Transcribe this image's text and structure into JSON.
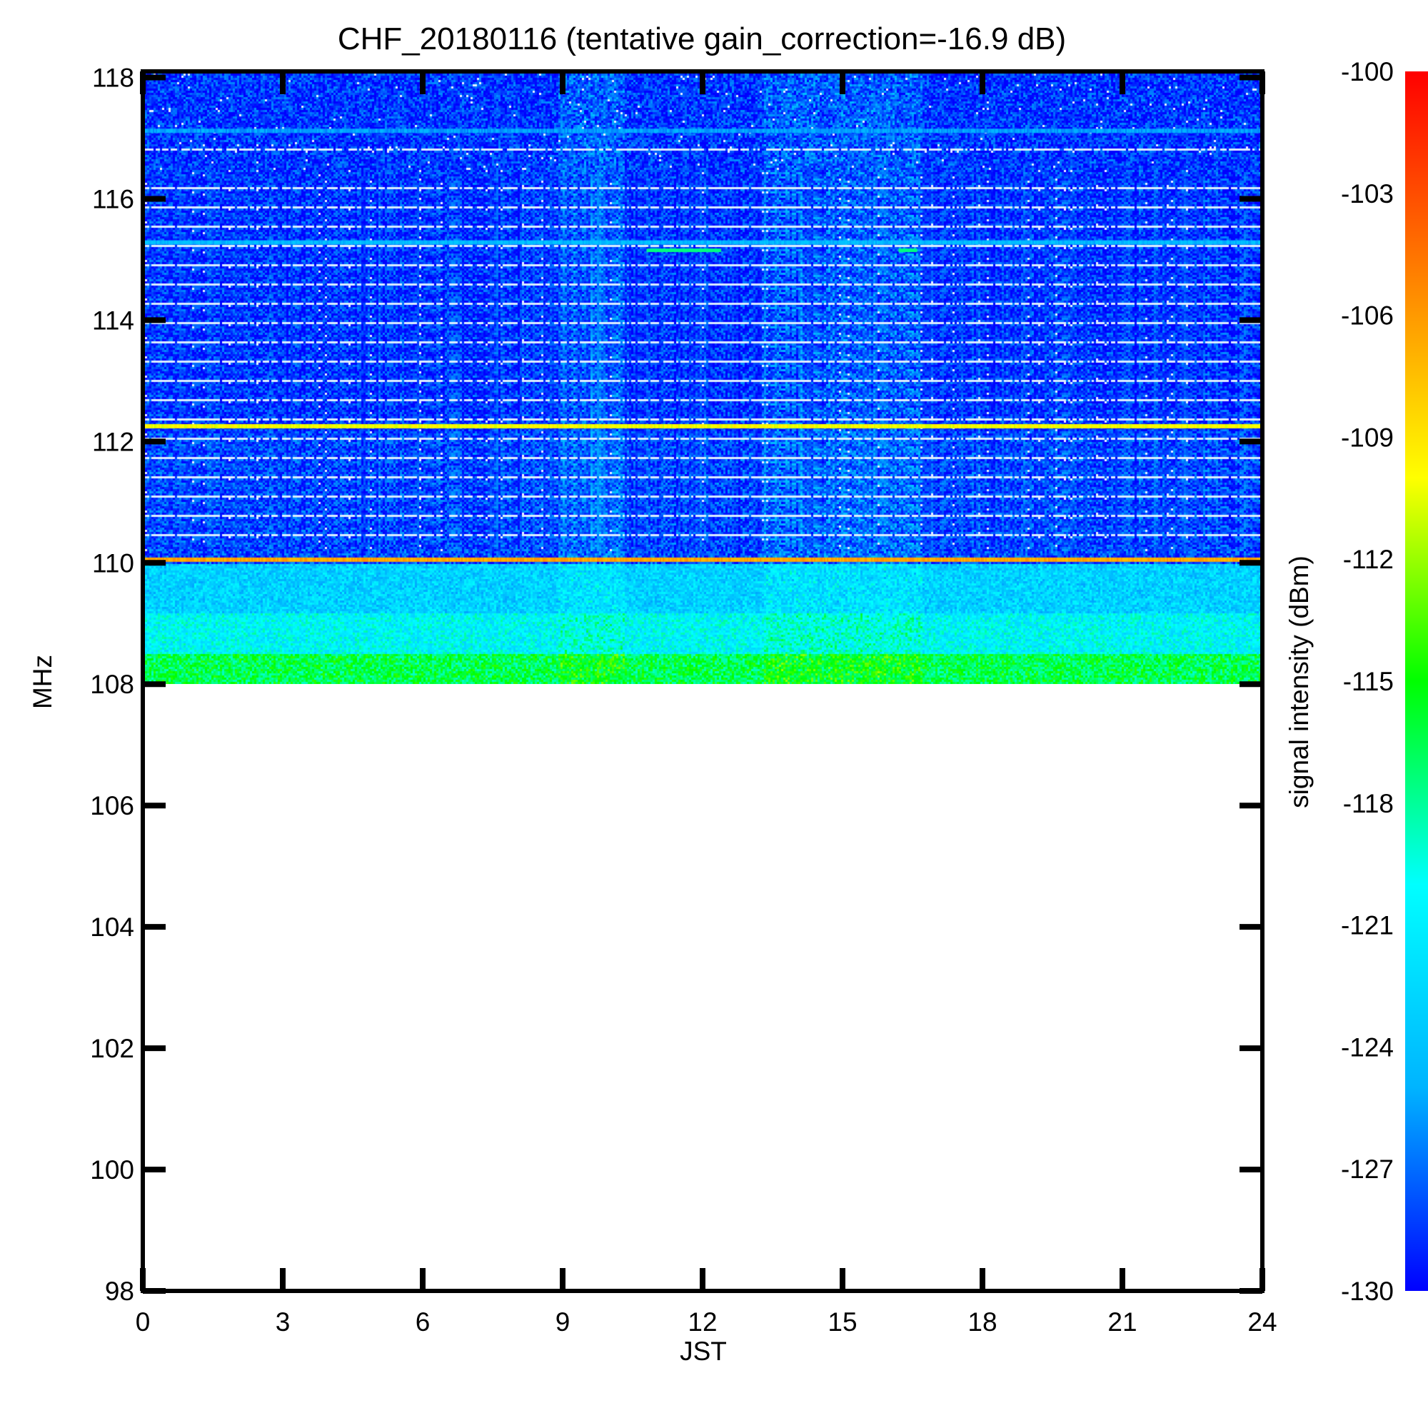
{
  "chart_data": {
    "type": "heatmap",
    "title": "CHF_20180116 (tentative gain_correction=-16.9 dB)",
    "xlabel": "JST",
    "ylabel": "MHz",
    "colorbar_label": "signal intensity (dBm)",
    "xlim": [
      0,
      24
    ],
    "ylim": [
      98,
      118.1
    ],
    "x_ticks": [
      0,
      3,
      6,
      9,
      12,
      15,
      18,
      21,
      24
    ],
    "y_ticks": [
      98,
      100,
      102,
      104,
      106,
      108,
      110,
      112,
      114,
      116,
      118
    ],
    "colorbar_ticks": [
      -100,
      -103,
      -106,
      -109,
      -112,
      -115,
      -118,
      -121,
      -124,
      -127,
      -130
    ],
    "colorbar_range": [
      -130,
      -100
    ],
    "colormap": [
      "#0000ff",
      "#00b4ff",
      "#00ffff",
      "#00ff00",
      "#ffff00",
      "#ff8000",
      "#ff0000"
    ],
    "data_coverage_mhz": [
      108,
      118.1
    ],
    "background_levels_dBm": [
      {
        "from_mhz": 108.0,
        "to_mhz": 108.5,
        "level": -116.5
      },
      {
        "from_mhz": 108.5,
        "to_mhz": 109.2,
        "level": -120.5
      },
      {
        "from_mhz": 109.2,
        "to_mhz": 110.0,
        "level": -123.0
      },
      {
        "from_mhz": 110.0,
        "to_mhz": 112.2,
        "level": -128.0
      },
      {
        "from_mhz": 112.2,
        "to_mhz": 118.1,
        "level": -128.5
      }
    ],
    "persistent_lines_dBm": [
      {
        "freq_mhz": 110.05,
        "level": -106.5
      },
      {
        "freq_mhz": 112.25,
        "level": -110.0
      },
      {
        "freq_mhz": 115.28,
        "level": -124.5
      },
      {
        "freq_mhz": 117.12,
        "level": -125.5
      }
    ],
    "transient_features_dBm": [
      {
        "freq_mhz": 115.15,
        "start_hour": 10.8,
        "end_hour": 12.4,
        "level": -117.5
      },
      {
        "freq_mhz": 115.15,
        "start_hour": 16.2,
        "end_hour": 16.6,
        "level": -117.5
      }
    ],
    "enhanced_noise_periods": [
      {
        "start_hour": 8.9,
        "end_hour": 10.3
      },
      {
        "start_hour": 13.3,
        "end_hour": 16.7
      }
    ]
  }
}
